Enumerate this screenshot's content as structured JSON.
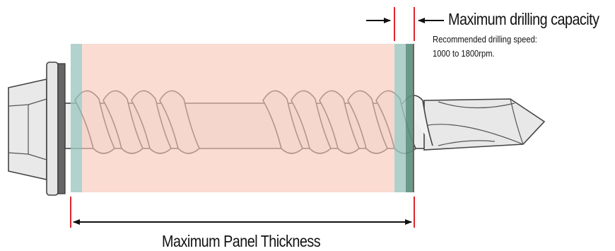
{
  "labels": {
    "drilling_capacity_title": "Maximum drilling capacity",
    "drilling_speed_line1": "Recommended drilling speed:",
    "drilling_speed_line2": "1000 to 1800rpm.",
    "panel_thickness": "Maximum Panel Thickness"
  },
  "colors": {
    "panel_fill": "#f7c6b6",
    "panel_edge": "#9fc7c0",
    "steel_layer": "#5f8f80",
    "marker_red": "#e0242c",
    "screw_outline": "#444444",
    "screw_fill": "#ececec"
  }
}
